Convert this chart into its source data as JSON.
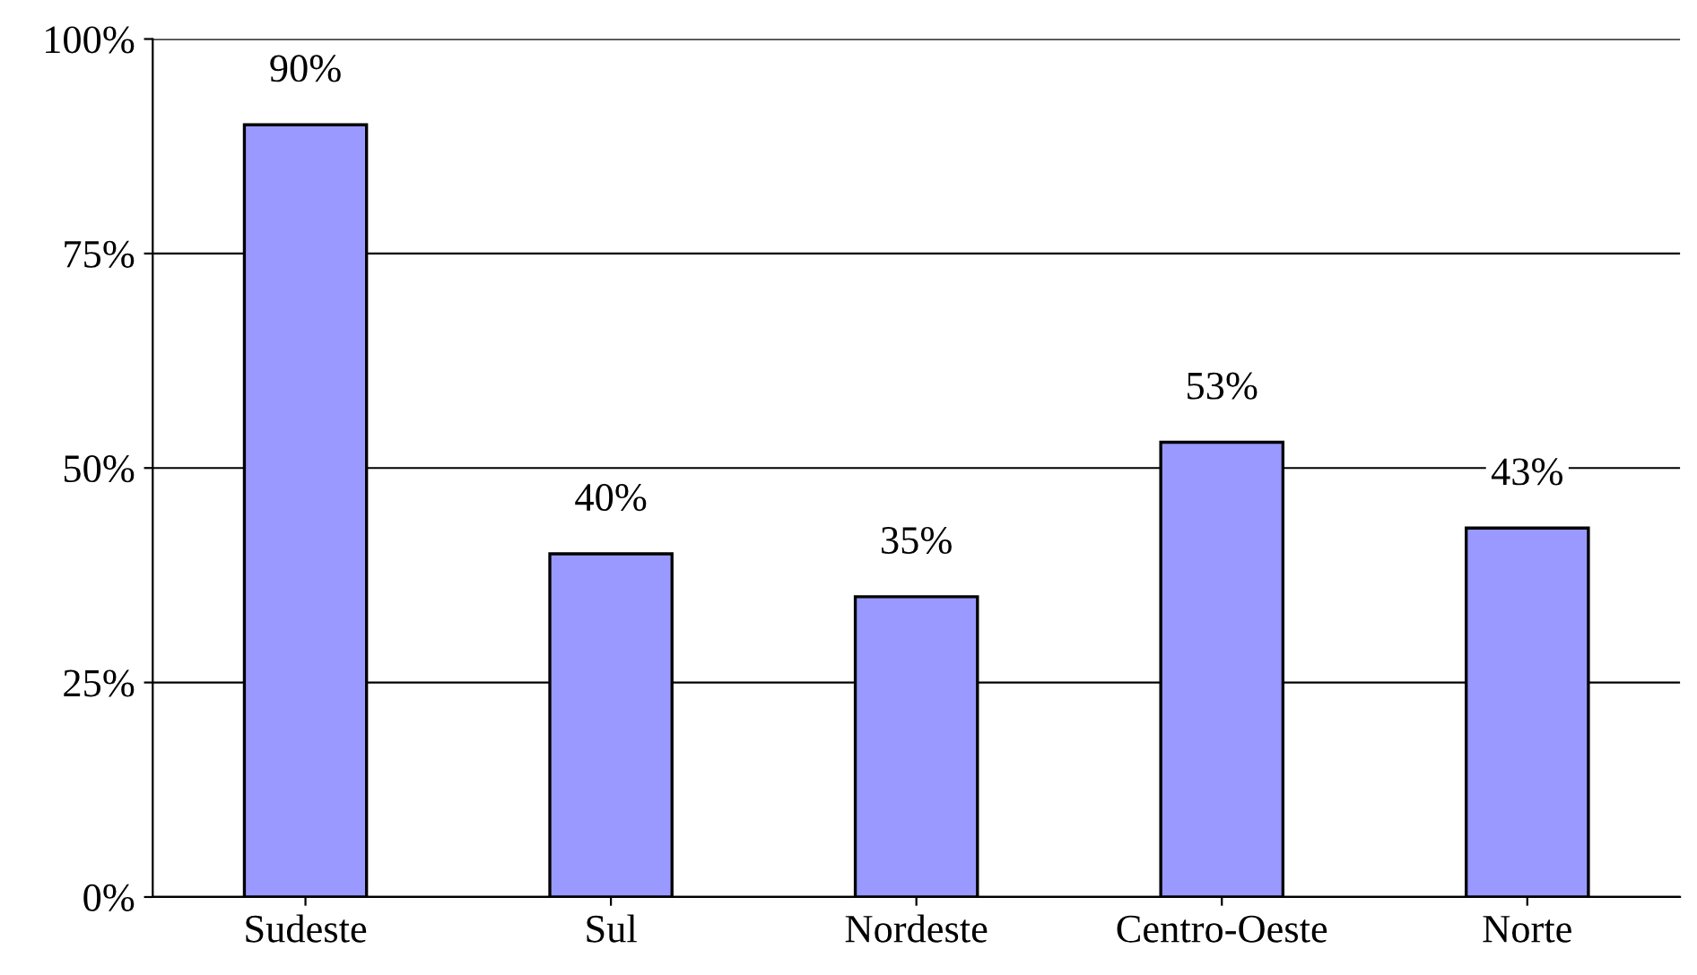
{
  "chart_data": {
    "type": "bar",
    "categories": [
      "Sudeste",
      "Sul",
      "Nordeste",
      "Centro-Oeste",
      "Norte"
    ],
    "values": [
      90,
      40,
      35,
      53,
      43
    ],
    "value_labels": [
      "90%",
      "40%",
      "35%",
      "53%",
      "43%"
    ],
    "color": "#9999ff",
    "ylim": [
      0,
      100
    ],
    "yticks": [
      {
        "value": 0,
        "label": "0%"
      },
      {
        "value": 25,
        "label": "25%"
      },
      {
        "value": 50,
        "label": "50%"
      },
      {
        "value": 75,
        "label": "75%"
      },
      {
        "value": 100,
        "label": "100%"
      }
    ],
    "grid": "y"
  }
}
